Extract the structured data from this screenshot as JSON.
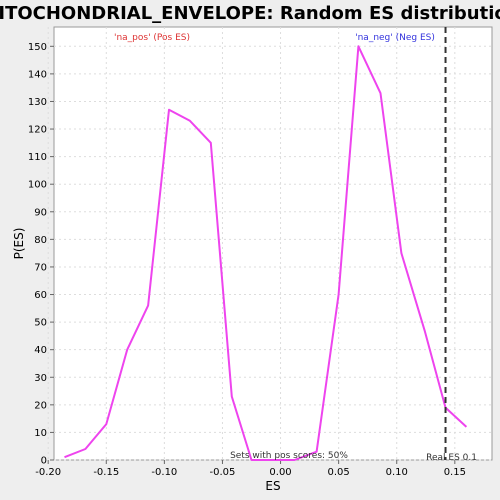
{
  "chart_data": {
    "type": "line",
    "title": "MITOCHONDRIAL_ENVELOPE: Random ES distribution",
    "xlabel": "ES",
    "ylabel": "P(ES)",
    "xlim": [
      -0.195,
      0.182
    ],
    "ylim": [
      0,
      157
    ],
    "x_ticks": [
      -0.2,
      -0.15,
      -0.1,
      -0.05,
      0.0,
      0.05,
      0.1,
      0.15
    ],
    "x_tick_labels": [
      "-0.20",
      "-0.15",
      "-0.10",
      "-0.05",
      "0.00",
      "0.05",
      "0.10",
      "0.15"
    ],
    "y_ticks": [
      0,
      10,
      20,
      30,
      40,
      50,
      60,
      70,
      80,
      90,
      100,
      110,
      120,
      130,
      140,
      150
    ],
    "grid": true,
    "series": [
      {
        "color": "#ee44ee",
        "x": [
          -0.186,
          -0.168,
          -0.15,
          -0.132,
          -0.114,
          -0.096,
          -0.078,
          -0.06,
          -0.042,
          -0.025,
          -0.008,
          0.012,
          0.031,
          0.05,
          0.067,
          0.086,
          0.104,
          0.124,
          0.142,
          0.16
        ],
        "y": [
          1,
          4,
          13,
          40,
          56,
          127,
          123,
          115,
          23,
          0,
          0,
          0,
          3,
          60,
          150,
          133,
          75,
          47,
          19,
          12
        ]
      }
    ],
    "real_es": 0.142,
    "annotations": {
      "pos_label": "'na_pos' (Pos ES)",
      "neg_label": "'na_neg' (Neg ES)",
      "pos_scores": "Sets with pos scores: 50%",
      "real_es": "Real ES 0.1"
    },
    "colors": {
      "line": "#ee44ee",
      "pos_label": "#dd3333",
      "neg_label": "#3333dd",
      "real_es_line": "#333333"
    }
  }
}
